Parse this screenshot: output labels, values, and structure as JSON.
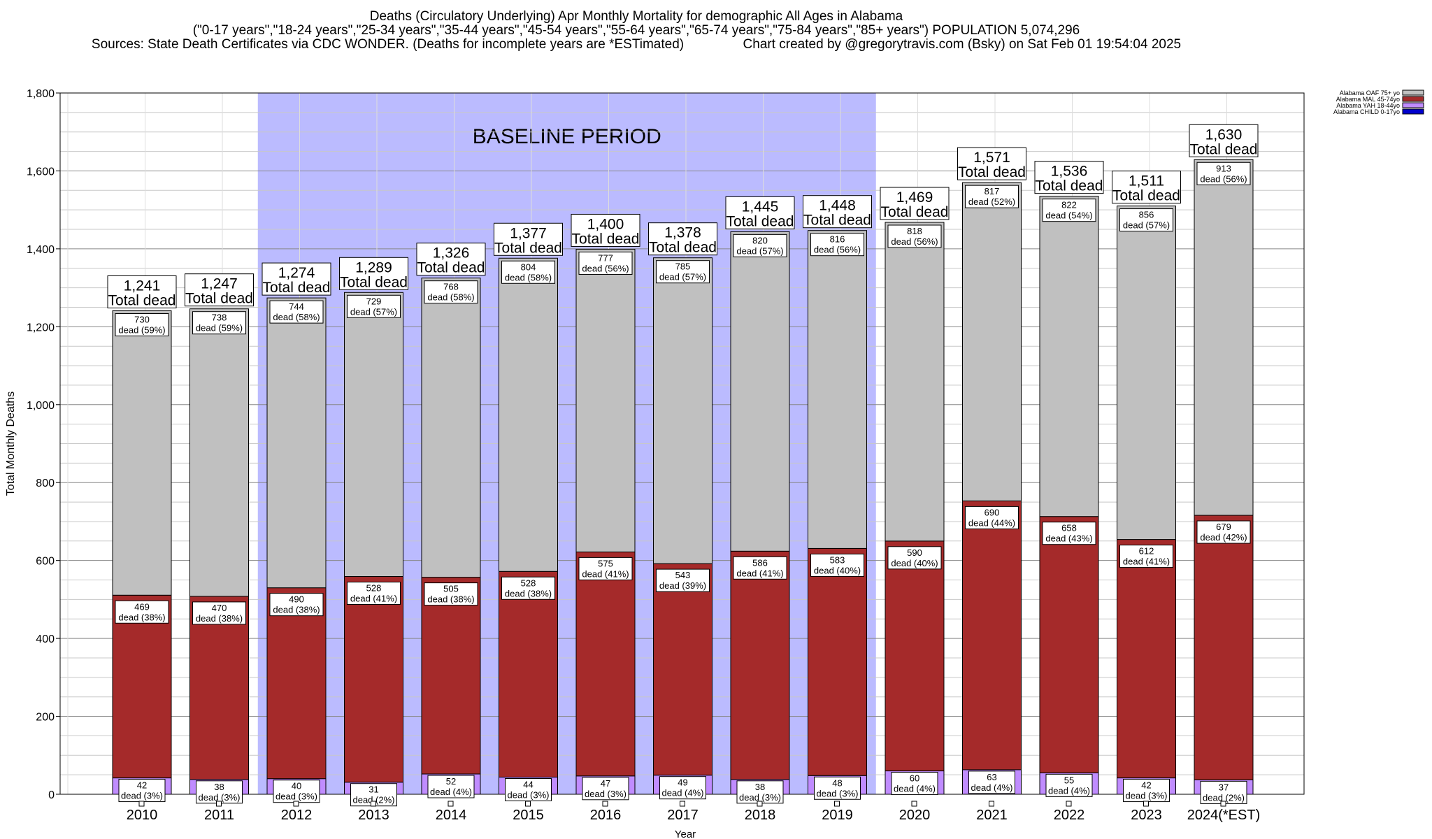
{
  "header": {
    "line1": "Deaths (Circulatory Underlying) Apr Monthly Mortality for demographic All Ages in Alabama",
    "line2": "(\"0-17 years\",\"18-24 years\",\"25-34 years\",\"35-44 years\",\"45-54 years\",\"55-64 years\",\"65-74 years\",\"75-84 years\",\"85+ years\") POPULATION 5,074,296",
    "line3": "Sources: State Death Certificates via CDC WONDER. (Deaths for incomplete years are *ESTimated)                Chart created by @gregorytravis.com (Bsky) on Sat Feb 01 19:54:04 2025"
  },
  "chart_data": {
    "type": "bar",
    "stacked": true,
    "xlabel": "Year",
    "ylabel": "Total Monthly Deaths",
    "ylim": [
      0,
      1800
    ],
    "yticks": [
      0,
      200,
      400,
      600,
      800,
      1000,
      1200,
      1400,
      1600,
      1800
    ],
    "ytick_labels": [
      "0",
      "200",
      "400",
      "600",
      "800",
      "1,000",
      "1,200",
      "1,400",
      "1,600",
      "1,800"
    ],
    "grid": true,
    "legend_position": "top-right",
    "baseline_label": "BASELINE PERIOD",
    "baseline_range": [
      "2012",
      "2019"
    ],
    "categories": [
      "2010",
      "2011",
      "2012",
      "2013",
      "2014",
      "2015",
      "2016",
      "2017",
      "2018",
      "2019",
      "2020",
      "2021",
      "2022",
      "2023",
      "2024(*EST)"
    ],
    "totals": [
      1241,
      1247,
      1274,
      1289,
      1326,
      1377,
      1400,
      1378,
      1445,
      1448,
      1469,
      1571,
      1536,
      1511,
      1630
    ],
    "total_labels": [
      "1,241",
      "1,247",
      "1,274",
      "1,289",
      "1,326",
      "1,377",
      "1,400",
      "1,378",
      "1,445",
      "1,448",
      "1,469",
      "1,571",
      "1,536",
      "1,511",
      "1,630"
    ],
    "total_suffix": "Total dead",
    "dead_word": "dead",
    "series": [
      {
        "name": "Alabama CHILD 0-17yo",
        "color": "#0000cc",
        "values": [
          0,
          0,
          0,
          0,
          0,
          0,
          0,
          0,
          0,
          0,
          0,
          0,
          0,
          0,
          0
        ],
        "pcts": [],
        "labels": []
      },
      {
        "name": "Alabama YAH 18-44yo",
        "color": "#c08cff",
        "values": [
          42,
          38,
          40,
          31,
          52,
          44,
          47,
          49,
          38,
          48,
          60,
          63,
          55,
          42,
          37
        ],
        "pcts": [
          "(3%)",
          "(3%)",
          "(3%)",
          "(2%)",
          "(4%)",
          "(3%)",
          "(3%)",
          "(4%)",
          "(3%)",
          "(3%)",
          "(4%)",
          "(4%)",
          "(4%)",
          "(3%)",
          "(2%)"
        ]
      },
      {
        "name": "Alabama MAL 45-74yo",
        "color": "#a52a2a",
        "values": [
          469,
          470,
          490,
          528,
          505,
          528,
          575,
          543,
          586,
          583,
          590,
          690,
          658,
          612,
          679
        ],
        "pcts": [
          "(38%)",
          "(38%)",
          "(38%)",
          "(41%)",
          "(38%)",
          "(38%)",
          "(41%)",
          "(39%)",
          "(41%)",
          "(40%)",
          "(40%)",
          "(44%)",
          "(43%)",
          "(41%)",
          "(42%)"
        ]
      },
      {
        "name": "Alabama OAF 75+ yo",
        "color": "#c0c0c0",
        "values": [
          730,
          738,
          744,
          729,
          768,
          804,
          777,
          785,
          820,
          816,
          818,
          817,
          822,
          856,
          913
        ],
        "pcts": [
          "(59%)",
          "(59%)",
          "(58%)",
          "(57%)",
          "(58%)",
          "(58%)",
          "(56%)",
          "(57%)",
          "(57%)",
          "(56%)",
          "(56%)",
          "(52%)",
          "(54%)",
          "(57%)",
          "(56%)"
        ]
      }
    ],
    "legend": [
      {
        "name": "Alabama OAF 75+ yo",
        "color": "#c0c0c0"
      },
      {
        "name": "Alabama MAL 45-74yo",
        "color": "#a52a2a"
      },
      {
        "name": "Alabama YAH 18-44yo",
        "color": "#c08cff"
      },
      {
        "name": "Alabama CHILD 0-17yo",
        "color": "#0000cc"
      }
    ],
    "colors": {
      "baseline": "#bbbbff",
      "grid": "#aaaaaa",
      "axis": "#000000"
    }
  }
}
